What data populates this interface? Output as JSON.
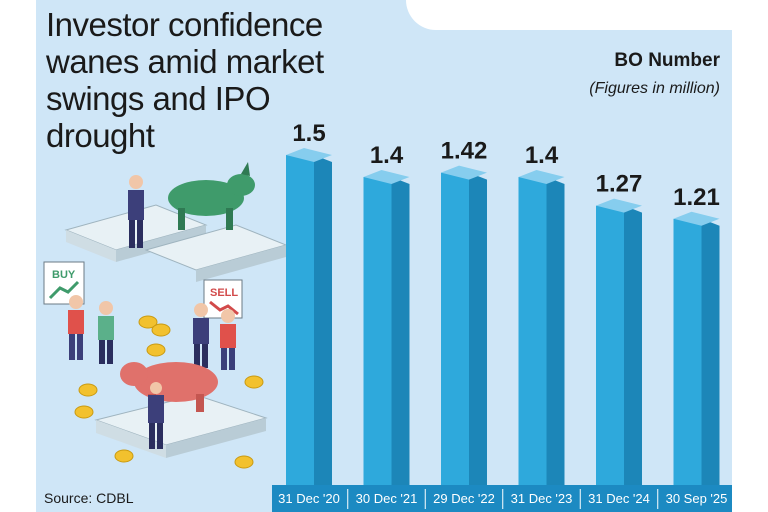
{
  "headline": "Investor confidence wanes amid market swings and IPO drought",
  "bo_title": "BO Number",
  "bo_subtitle": "(Figures in million)",
  "source": "Source: CDBL",
  "illustration": {
    "buy_sign": "BUY",
    "sell_sign": "SELL"
  },
  "colors": {
    "panel": "#cfe6f7",
    "bar_front": "#2ea9dc",
    "bar_side": "#1c86b8",
    "bar_top": "#86cdee",
    "axis_band": "#1c8ac2"
  },
  "chart_data": {
    "type": "bar",
    "title": "BO Number",
    "subtitle": "(Figures in million)",
    "categories": [
      "31 Dec '20",
      "30 Dec '21",
      "29 Dec '22",
      "31 Dec '23",
      "31 Dec '24",
      "30 Sep '25"
    ],
    "values": [
      1.5,
      1.4,
      1.42,
      1.4,
      1.27,
      1.21
    ],
    "data_labels": [
      "1.5",
      "1.4",
      "1.42",
      "1.4",
      "1.27",
      "1.21"
    ],
    "xlabel": "",
    "ylabel": "",
    "ylim": [
      0,
      1.6
    ],
    "grid": false,
    "legend": "none"
  }
}
